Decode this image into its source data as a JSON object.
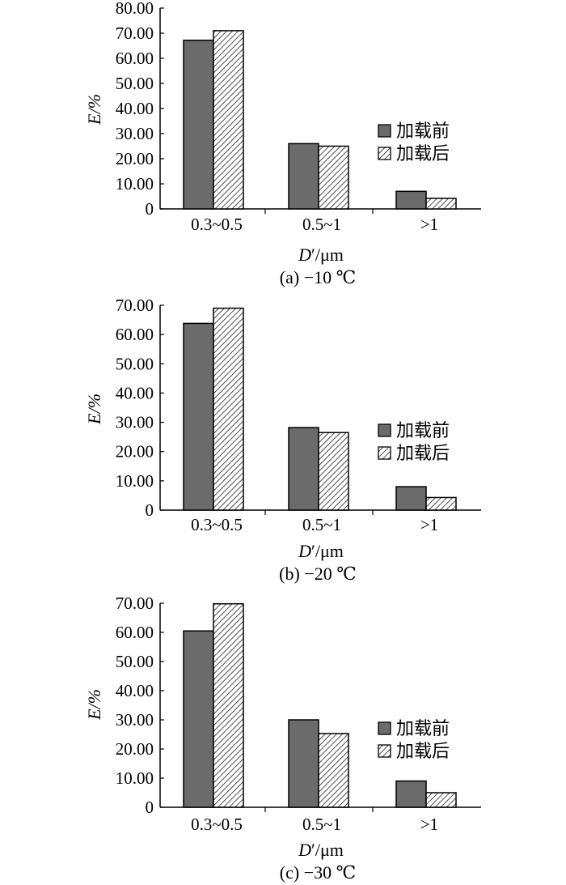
{
  "legend": {
    "before": "加载前",
    "after": "加载后"
  },
  "colors": {
    "before_fill": "#6b6b6b",
    "after_hatch": "#222222",
    "axis": "#000000"
  },
  "chart_data": [
    {
      "type": "bar",
      "caption": "(a) −10 ℃",
      "xlabel_main": "D",
      "xlabel_prime": "′",
      "xlabel_unit": "/μm",
      "ylabel": "E/%",
      "ylim": [
        0,
        80
      ],
      "yticks": [
        "0",
        "10.00",
        "20.00",
        "30.00",
        "40.00",
        "50.00",
        "60.00",
        "70.00",
        "80.00"
      ],
      "categories": [
        "0.3~0.5",
        "0.5~1",
        ">1"
      ],
      "series": [
        {
          "name": "加载前",
          "values": [
            67.2,
            26.0,
            7.0
          ]
        },
        {
          "name": "加载后",
          "values": [
            71.0,
            25.0,
            4.2
          ]
        }
      ],
      "legend_position": "right"
    },
    {
      "type": "bar",
      "caption": "(b) −20 ℃",
      "xlabel_main": "D",
      "xlabel_prime": "′",
      "xlabel_unit": "/μm",
      "ylabel": "E/%",
      "ylim": [
        0,
        70
      ],
      "yticks": [
        "0",
        "10.00",
        "20.00",
        "30.00",
        "40.00",
        "50.00",
        "60.00",
        "70.00"
      ],
      "categories": [
        "0.3~0.5",
        "0.5~1",
        ">1"
      ],
      "series": [
        {
          "name": "加载前",
          "values": [
            63.8,
            28.2,
            8.0
          ]
        },
        {
          "name": "加载后",
          "values": [
            69.0,
            26.5,
            4.3
          ]
        }
      ],
      "legend_position": "right"
    },
    {
      "type": "bar",
      "caption": "(c) −30 ℃",
      "xlabel_main": "D",
      "xlabel_prime": "′",
      "xlabel_unit": "/μm",
      "ylabel": "E/%",
      "ylim": [
        0,
        70
      ],
      "yticks": [
        "0",
        "10.00",
        "20.00",
        "30.00",
        "40.00",
        "50.00",
        "60.00",
        "70.00"
      ],
      "categories": [
        "0.3~0.5",
        "0.5~1",
        ">1"
      ],
      "series": [
        {
          "name": "加载前",
          "values": [
            60.5,
            30.0,
            9.0
          ]
        },
        {
          "name": "加载后",
          "values": [
            69.8,
            25.3,
            5.0
          ]
        }
      ],
      "legend_position": "right"
    }
  ]
}
